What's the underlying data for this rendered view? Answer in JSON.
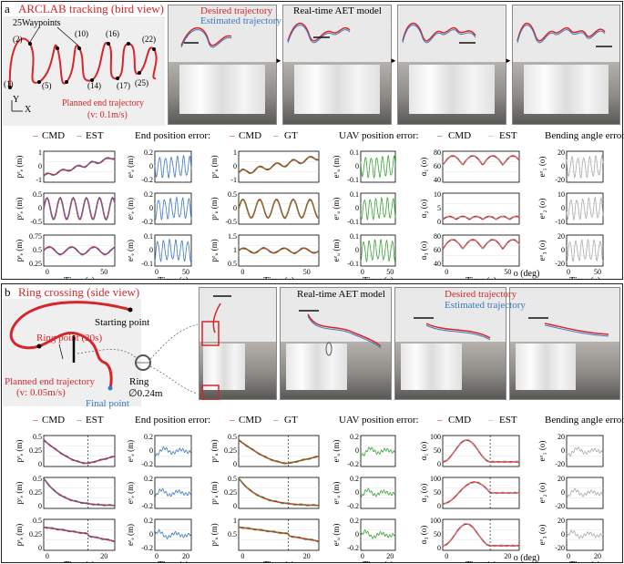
{
  "panel_a": {
    "label": "a",
    "title": "ARCLAB tracking (bird view)",
    "waypoints_label": "25Waypoints",
    "wp": [
      "(1)",
      "(2)",
      "(5)",
      "(10)",
      "(14)",
      "(16)",
      "(17)",
      "(22)",
      "(25)"
    ],
    "axis_y": "Y",
    "axis_x": "X",
    "planned": "Planned end trajectory",
    "speed": "(v: 0.1m/s)",
    "legend_desired": "Desired trajectory",
    "legend_estimated": "Estimated trajectory",
    "model_label": "Real-time AET model",
    "legend_cmd": "CMD",
    "legend_est": "EST",
    "legend_cmd2": "CMD",
    "legend_gt": "GT",
    "legend_cmd3": "CMD",
    "legend_est3": "EST",
    "sec_end": "End position error:",
    "sec_uav": "UAV position error:",
    "sec_bend": "Bending angle error:",
    "time": "Time (s)",
    "deg": "o (deg)",
    "ticks_x": [
      "0",
      "50"
    ],
    "col1_ylabels": [
      "pˣₑ (m)",
      "pʸₑ (m)",
      "pᶻₑ (m)"
    ],
    "col1_ticks": [
      [
        "1",
        "0",
        "-1"
      ],
      [
        "0.5",
        "0",
        "-0.5"
      ],
      [
        "0.75",
        "0.5",
        "0.25"
      ]
    ],
    "col2_ylabels": [
      "eˣₑ (m)",
      "eʸₑ (m)",
      "eᶻₑ (m)"
    ],
    "col2_ticks": [
      [
        "0.2",
        "0",
        "-0.2"
      ],
      [
        "0.2",
        "0",
        "-0.2"
      ],
      [
        "0.1",
        "0",
        "-0.1"
      ]
    ],
    "col3_ylabels": [
      "pˣᵤ (m)",
      "pʸᵤ (m)",
      "pᶻᵤ (m)"
    ],
    "col3_ticks": [
      [
        "1",
        "0",
        "-1"
      ],
      [
        "0.5",
        "0",
        "-0.5"
      ],
      [
        "1.5",
        "1",
        "0.5"
      ]
    ],
    "col4_ylabels": [
      "eˣᵤ (m)",
      "eʸᵤ (m)",
      "eᶻᵤ (m)"
    ],
    "col4_ticks": [
      [
        "0.1",
        "0",
        "-0.1"
      ],
      [
        "0.1",
        "0",
        "-0.1"
      ],
      [
        "0.1",
        "0",
        "-0.1"
      ]
    ],
    "col5_ylabels": [
      "α₁ (o)",
      "α₂ (o)",
      "α₃ (o)"
    ],
    "col5_ticks": [
      [
        "80",
        "60",
        "40"
      ],
      [
        "10",
        "5",
        "0"
      ],
      [
        "80",
        "60",
        "40"
      ]
    ],
    "col6_ylabels": [
      "eᵅ₁ (o)",
      "eᵅ₂ (o)",
      "eᵅ₃ (o)"
    ],
    "col6_ticks": [
      [
        "20",
        "0",
        "-20"
      ],
      [
        "10",
        "0",
        "-10"
      ],
      [
        "20",
        "0",
        "-20"
      ]
    ]
  },
  "panel_b": {
    "label": "b",
    "title": "Ring crossing (side view)",
    "start": "Starting point",
    "ring_point": "Ring point (20s)",
    "ring": "Ring",
    "ring_size": "∅0.24m",
    "planned": "Planned end trajectory",
    "speed": "(v: 0.05m/s)",
    "final": "Final point",
    "legend_desired": "Desired trajectory",
    "legend_estimated": "Estimated trajectory",
    "model_label": "Real-time AET model",
    "legend_cmd": "CMD",
    "legend_est": "EST",
    "legend_cmd2": "CMD",
    "legend_gt": "GT",
    "legend_cmd3": "CMD",
    "legend_est3": "EST",
    "sec_end": "End position error:",
    "sec_uav": "UAV position error:",
    "sec_bend": "Bending angle error:",
    "time": "Time (s)",
    "deg": "o (deg)",
    "ticks_x": [
      "0",
      "20"
    ],
    "col1_ylabels": [
      "pˣₑ (m)",
      "pʸₑ (m)",
      "pᶻₑ (m)"
    ],
    "col1_ticks": [
      [
        "0.5",
        "0.25",
        "0"
      ],
      [
        "0.5",
        "0.25",
        "0"
      ],
      [
        "0.5",
        "0.25",
        "0"
      ]
    ],
    "col2_ylabels": [
      "eˣₑ (m)",
      "eʸₑ (m)",
      "eᶻₑ (m)"
    ],
    "col2_ticks": [
      [
        "0.2",
        "0",
        "-0.2"
      ],
      [
        "0.2",
        "0",
        "-0.2"
      ],
      [
        "0.2",
        "0",
        "-0.2"
      ]
    ],
    "col3_ylabels": [
      "pˣᵤ (m)",
      "pʸᵤ (m)",
      "pᶻᵤ (m)"
    ],
    "col3_ticks": [
      [
        "0.5",
        "0.25",
        "0"
      ],
      [
        "0.5",
        "0.25",
        "0"
      ],
      [
        "1",
        "0.5",
        ""
      ]
    ],
    "col4_ylabels": [
      "eˣᵤ (m)",
      "eʸᵤ (m)",
      "eᶻᵤ (m)"
    ],
    "col4_ticks": [
      [
        "0.2",
        "0",
        "-0.2"
      ],
      [
        "0.2",
        "0",
        "-0.2"
      ],
      [
        "0.2",
        "0",
        "-0.2"
      ]
    ],
    "col5_ylabels": [
      "α₁ (o)",
      "α₂ (o)",
      "α₃ (o)"
    ],
    "col5_ticks": [
      [
        "100",
        "50",
        "0"
      ],
      [
        "100",
        "50",
        "0"
      ],
      [
        "100",
        "50",
        "0"
      ]
    ],
    "col6_ylabels": [
      "eᵅ₁ (o)",
      "eᵅ₂ (o)",
      "eᵅ₃ (o)"
    ],
    "col6_ticks": [
      [
        "20",
        "0",
        "-20"
      ],
      [
        "20",
        "0",
        "-20"
      ],
      [
        "20",
        "0",
        "-20"
      ]
    ]
  },
  "colors": {
    "red": "#d6262b",
    "blue": "#3a78c0",
    "green": "#3aa339",
    "gray": "#aaaaaa"
  }
}
